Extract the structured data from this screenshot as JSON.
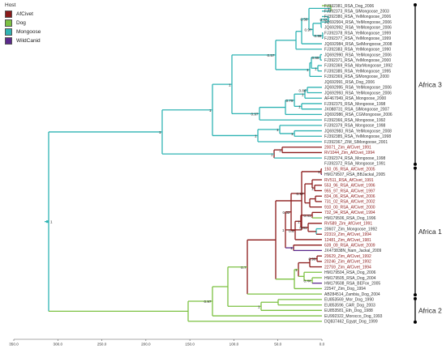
{
  "legend": {
    "title": "Host",
    "items": [
      {
        "label": "AfCivet",
        "color": "#8b1a1a"
      },
      {
        "label": "Dog",
        "color": "#7cc142"
      },
      {
        "label": "Mongoose",
        "color": "#2fb3b3"
      },
      {
        "label": "WildCanid",
        "color": "#5b2a8c"
      }
    ]
  },
  "clades": [
    {
      "label": "Africa 3"
    },
    {
      "label": "Africa 1"
    },
    {
      "label": "Africa 2"
    }
  ],
  "axis": {
    "ticks": [
      "350.0",
      "300.0",
      "250.0",
      "200.0",
      "150.0",
      "100.0",
      "50.0",
      "0.0"
    ]
  },
  "nodes": [
    "1",
    "0.47",
    "0.98",
    "0.97",
    "0.58",
    "0.57",
    "0.65",
    "1",
    "1",
    "1",
    "0.86",
    "1",
    "0.79",
    "1",
    "0.97",
    "1",
    "1",
    "1",
    "1",
    "1",
    "1",
    "1",
    "1",
    "0.97",
    "1",
    "0.32",
    "1",
    "0.41",
    "0.81",
    "1",
    "0.4",
    "1",
    "0.44",
    "0.99",
    "1",
    "0.7",
    "0.97",
    "1"
  ],
  "taxa": [
    {
      "label": "FJ392381_RSA_Dog_2006",
      "host": "Dog"
    },
    {
      "label": "FJ392373_RSA_SlMongoose_2003",
      "host": "Mongoose"
    },
    {
      "label": "FJ392380_RSA_YelMongoose_2006",
      "host": "Mongoose"
    },
    {
      "label": "JQ692904_RSA_YelMongoose_2006",
      "host": "Mongoose"
    },
    {
      "label": "JQ692992_RSA_YelMongoose_2006",
      "host": "Mongoose"
    },
    {
      "label": "FJ392378_RSA_YelMongoose_1999",
      "host": "Mongoose"
    },
    {
      "label": "FJ392377_RSA_YelMongoose_1999",
      "host": "Mongoose"
    },
    {
      "label": "JQ692984_RSA_SelMongoose_2008",
      "host": "Mongoose"
    },
    {
      "label": "FJ392383_RSA_YelMongoose_1990",
      "host": "Mongoose"
    },
    {
      "label": "JQ692990_RSA_YelMongoose_2006",
      "host": "Mongoose"
    },
    {
      "label": "FJ392371_RSA_YelMongoose_2000",
      "host": "Mongoose"
    },
    {
      "label": "FJ392369_RSA_MarMongoose_1992",
      "host": "Mongoose"
    },
    {
      "label": "FJ392385_RSA_YelMongoose_1995",
      "host": "Mongoose"
    },
    {
      "label": "FJ392369_RSA_SlMongoose_2000",
      "host": "Mongoose"
    },
    {
      "label": "JQ692991_RSA_Dog_2006",
      "host": "Dog"
    },
    {
      "label": "JQ692995_RSA_YelMongoose_2006",
      "host": "Mongoose"
    },
    {
      "label": "JQ692993_RSA_YelMongoose_2006",
      "host": "Mongoose"
    },
    {
      "label": "AF467949_RSA_Mongoose_2000",
      "host": "Mongoose"
    },
    {
      "label": "FJ392375_RSA_Mongoose_1998",
      "host": "Mongoose"
    },
    {
      "label": "JX088731_RSA_SlMongoose_2007",
      "host": "Mongoose"
    },
    {
      "label": "JQ692986_RSA_CGMongoose_2006",
      "host": "Mongoose"
    },
    {
      "label": "FJ392366_RSA_Mongoose_1992",
      "host": "Mongoose"
    },
    {
      "label": "FJ392379_RSA_Mongoose_1998",
      "host": "Mongoose"
    },
    {
      "label": "JQ692983_RSA_YelMongoose_2008",
      "host": "Mongoose"
    },
    {
      "label": "FJ392385_RSA_YelMongoose_1998",
      "host": "Mongoose"
    },
    {
      "label": "FJ392367_ZIM_SlMongoose_2001",
      "host": "Mongoose"
    },
    {
      "label": "20071_Zim_AfCivet_1991",
      "host": "AfCivet"
    },
    {
      "label": "RV1044_Zim_AfCivet_1994",
      "host": "AfCivet"
    },
    {
      "label": "FJ392374_RSA_Mongoose_1998",
      "host": "Mongoose"
    },
    {
      "label": "FJ392372_RSA_Mongoose_1991",
      "host": "Mongoose"
    },
    {
      "label": "150_05_RSA_AfCivet_2005",
      "host": "AfCivet"
    },
    {
      "label": "HM179507_RSA_BBJackal_2005",
      "host": "WildCanid"
    },
    {
      "label": "RV511_RSA_AfCivet_1991",
      "host": "AfCivet"
    },
    {
      "label": "553_96_RSA_AfCivet_1996",
      "host": "AfCivet"
    },
    {
      "label": "955_97_RSA_AfCivet_1997",
      "host": "AfCivet"
    },
    {
      "label": "834_06_RSA_AfCivet_2006",
      "host": "AfCivet"
    },
    {
      "label": "731_02_RSA_AfCivet_2002",
      "host": "AfCivet"
    },
    {
      "label": "910_00_RSA_AfCivet_2000",
      "host": "AfCivet"
    },
    {
      "label": "732_94_RSA_AfCivet_1994",
      "host": "AfCivet"
    },
    {
      "label": "HM179506_RSA_Dog_1996",
      "host": "Dog"
    },
    {
      "label": "RV589_Zim_AfCivet_1991",
      "host": "AfCivet"
    },
    {
      "label": "20607_Zim_Mongoose_1992",
      "host": "Mongoose"
    },
    {
      "label": "22319_Zim_AfCivet_1994",
      "host": "AfCivet"
    },
    {
      "label": "12481_Zim_AfCivet_1981",
      "host": "AfCivet"
    },
    {
      "label": "639_09_RSA_AfCivet_2009",
      "host": "AfCivet"
    },
    {
      "label": "JX473838N_Nam_Jackal_2009",
      "host": "WildCanid"
    },
    {
      "label": "20629_Zim_AfCivet_1992",
      "host": "AfCivet"
    },
    {
      "label": "20246_Zim_AfCivet_1992",
      "host": "AfCivet"
    },
    {
      "label": "22759_Zim_AfCivet_1994",
      "host": "AfCivet"
    },
    {
      "label": "HM179504_RSA_Dog_2006",
      "host": "Dog"
    },
    {
      "label": "HM179505_RSA_Dog_2004",
      "host": "Dog"
    },
    {
      "label": "HM179508_RSA_BEFox_2005",
      "host": "WildCanid"
    },
    {
      "label": "22547_Zim_Dog_1994",
      "host": "Dog"
    },
    {
      "label": "AB284514_Zambia_Dog_2004",
      "host": "Dog"
    },
    {
      "label": "EU853569_Mor_Dog_1990",
      "host": "Dog"
    },
    {
      "label": "EU853596_CAR_Dog_2003",
      "host": "Dog"
    },
    {
      "label": "EU853581_Eth_Dog_1988",
      "host": "Dog"
    },
    {
      "label": "EU992322_Morocco_Dog_1993",
      "host": "Dog"
    },
    {
      "label": "DQ837462_Egypt_Dog_1999",
      "host": "Dog"
    }
  ]
}
